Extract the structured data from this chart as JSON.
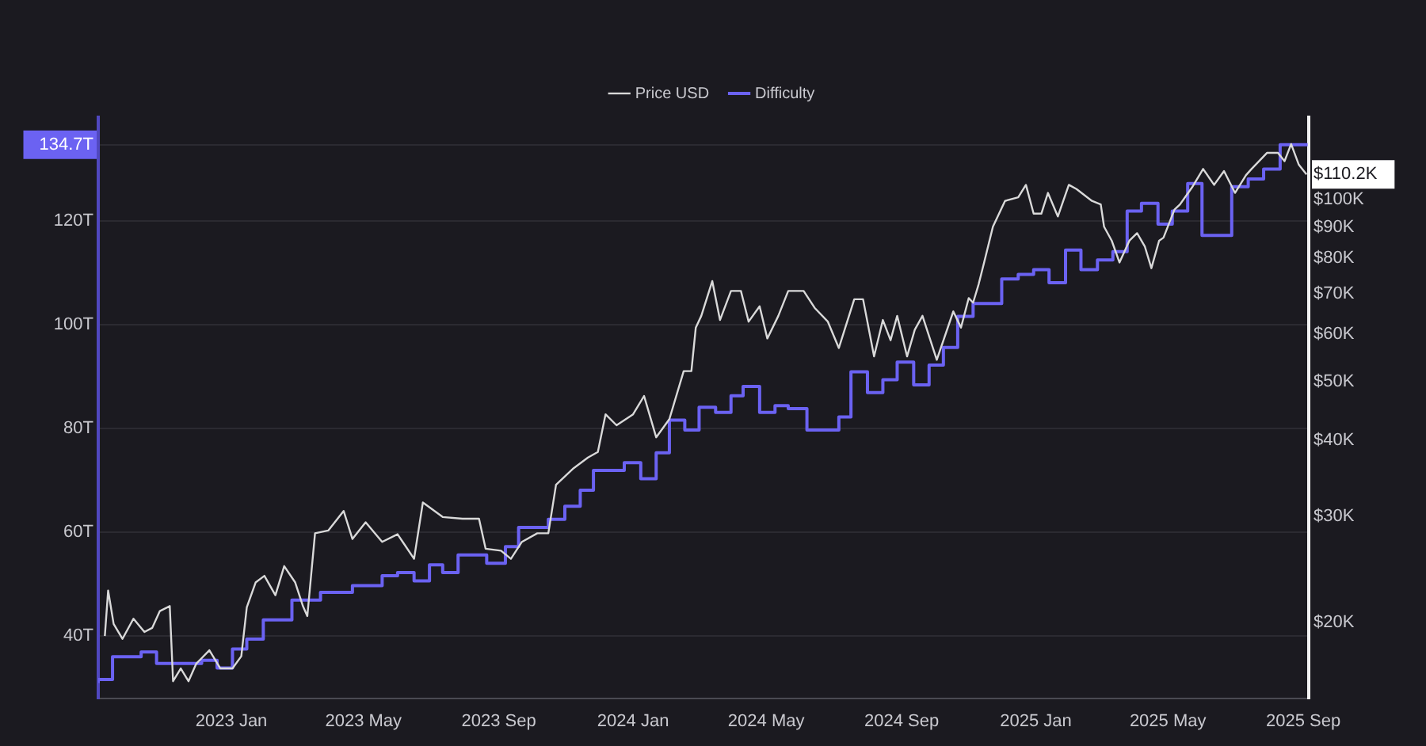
{
  "chart_data": {
    "type": "line",
    "legend": "top",
    "grid": "y",
    "log": "y2",
    "xlim": [
      "2022-09-02",
      "2025-09-06"
    ],
    "xticks": [
      {
        "value": "2023-01-01",
        "label": "2023 Jan"
      },
      {
        "value": "2023-05-01",
        "label": "2023 May"
      },
      {
        "value": "2023-09-01",
        "label": "2023 Sep"
      },
      {
        "value": "2024-01-01",
        "label": "2024 Jan"
      },
      {
        "value": "2024-05-01",
        "label": "2024 May"
      },
      {
        "value": "2024-09-01",
        "label": "2024 Sep"
      },
      {
        "value": "2025-01-01",
        "label": "2025 Jan"
      },
      {
        "value": "2025-05-01",
        "label": "2025 May"
      },
      {
        "value": "2025-09-01",
        "label": "2025 Sep"
      }
    ],
    "ylim": [
      28,
      140
    ],
    "yticks": [
      {
        "value": 40,
        "label": "40T"
      },
      {
        "value": 60,
        "label": "60T"
      },
      {
        "value": 80,
        "label": "80T"
      },
      {
        "value": 100,
        "label": "100T"
      },
      {
        "value": 120,
        "label": "120T"
      },
      {
        "value": 134.7,
        "label": "134.7T"
      }
    ],
    "y2lim": [
      15,
      137
    ],
    "y2ticks": [
      {
        "value": 20,
        "label": "$20K"
      },
      {
        "value": 30,
        "label": "$30K"
      },
      {
        "value": 40,
        "label": "$40K"
      },
      {
        "value": 50,
        "label": "$50K"
      },
      {
        "value": 60,
        "label": "$60K"
      },
      {
        "value": 70,
        "label": "$70K"
      },
      {
        "value": 80,
        "label": "$80K"
      },
      {
        "value": 90,
        "label": "$90K"
      },
      {
        "value": 100,
        "label": "$100K"
      },
      {
        "value": 110.2,
        "label": "$110.2K"
      }
    ],
    "series": [
      {
        "name": "Price USD",
        "type": "line",
        "axis": "y2",
        "color": "#d9d9d9",
        "x": [
          "2022-09-08",
          "2022-09-11",
          "2022-09-16",
          "2022-09-24",
          "2022-10-04",
          "2022-10-14",
          "2022-10-21",
          "2022-10-28",
          "2022-11-06",
          "2022-11-09",
          "2022-11-16",
          "2022-11-23",
          "2022-11-30",
          "2022-12-12",
          "2022-12-22",
          "2023-01-02",
          "2023-01-10",
          "2023-01-15",
          "2023-01-23",
          "2023-01-31",
          "2023-02-10",
          "2023-02-18",
          "2023-02-28",
          "2023-03-07",
          "2023-03-11",
          "2023-03-18",
          "2023-03-30",
          "2023-04-13",
          "2023-04-21",
          "2023-05-03",
          "2023-05-18",
          "2023-06-01",
          "2023-06-16",
          "2023-06-24",
          "2023-07-12",
          "2023-07-30",
          "2023-08-14",
          "2023-08-20",
          "2023-09-03",
          "2023-09-12",
          "2023-09-22",
          "2023-10-06",
          "2023-10-16",
          "2023-10-23",
          "2023-11-08",
          "2023-11-21",
          "2023-11-30",
          "2023-12-07",
          "2023-12-17",
          "2024-01-01",
          "2024-01-11",
          "2024-01-22",
          "2024-02-03",
          "2024-02-16",
          "2024-02-23",
          "2024-02-27",
          "2024-03-03",
          "2024-03-13",
          "2024-03-20",
          "2024-03-30",
          "2024-04-08",
          "2024-04-15",
          "2024-04-25",
          "2024-05-02",
          "2024-05-12",
          "2024-05-21",
          "2024-06-04",
          "2024-06-14",
          "2024-06-26",
          "2024-07-06",
          "2024-07-20",
          "2024-07-28",
          "2024-08-07",
          "2024-08-15",
          "2024-08-22",
          "2024-08-28",
          "2024-09-06",
          "2024-09-13",
          "2024-09-20",
          "2024-10-03",
          "2024-10-18",
          "2024-10-25",
          "2024-11-01",
          "2024-11-05",
          "2024-11-10",
          "2024-11-15",
          "2024-11-23",
          "2024-12-04",
          "2024-12-16",
          "2024-12-23",
          "2024-12-30",
          "2025-01-06",
          "2025-01-12",
          "2025-01-21",
          "2025-01-31",
          "2025-02-07",
          "2025-02-21",
          "2025-03-01",
          "2025-03-04",
          "2025-03-11",
          "2025-03-18",
          "2025-03-27",
          "2025-04-03",
          "2025-04-10",
          "2025-04-16",
          "2025-04-23",
          "2025-04-27",
          "2025-05-07",
          "2025-05-12",
          "2025-05-23",
          "2025-06-02",
          "2025-06-12",
          "2025-06-21",
          "2025-07-01",
          "2025-07-11",
          "2025-07-16",
          "2025-07-30",
          "2025-08-09",
          "2025-08-15",
          "2025-08-21",
          "2025-08-28",
          "2025-09-04"
        ],
        "values": [
          19.0,
          22.6,
          19.9,
          18.8,
          20.3,
          19.3,
          19.6,
          20.9,
          21.3,
          16.0,
          16.8,
          16.0,
          17.1,
          18.0,
          16.8,
          16.8,
          17.6,
          21.2,
          23.3,
          23.9,
          22.2,
          24.8,
          23.3,
          21.3,
          20.5,
          28.1,
          28.4,
          30.6,
          27.5,
          29.3,
          27.2,
          28.0,
          25.5,
          31.6,
          29.9,
          29.7,
          29.7,
          26.5,
          26.3,
          25.5,
          27.2,
          28.1,
          28.1,
          33.8,
          36.0,
          37.5,
          38.3,
          44.2,
          42.4,
          44.2,
          47.4,
          40.5,
          43.4,
          52.1,
          52.1,
          61.5,
          64.3,
          73.4,
          63.3,
          70.7,
          70.7,
          62.9,
          66.7,
          59.0,
          64.3,
          70.7,
          70.7,
          66.3,
          62.9,
          56.9,
          68.5,
          68.5,
          55.1,
          63.3,
          58.6,
          64.3,
          55.1,
          61.0,
          64.3,
          54.4,
          65.4,
          61.5,
          68.8,
          67.6,
          72.5,
          78.8,
          90.3,
          99.6,
          101.0,
          105.9,
          94.9,
          94.9,
          102.7,
          93.9,
          105.9,
          104.2,
          99.6,
          98.3,
          90.3,
          85.6,
          78.8,
          85.6,
          88.1,
          83.8,
          77.1,
          85.6,
          86.6,
          96.4,
          98.3,
          104.9,
          112.5,
          105.9,
          111.6,
          102.7,
          109.9,
          112.5,
          119.6,
          119.6,
          115.9,
          123.7,
          114.3,
          110.2
        ]
      },
      {
        "name": "Difficulty",
        "type": "step",
        "axis": "y",
        "color": "#6b62f2",
        "x": [
          "2022-09-02",
          "2022-09-15",
          "2022-10-11",
          "2022-10-25",
          "2022-12-05",
          "2022-12-19",
          "2023-01-02",
          "2023-01-15",
          "2023-01-30",
          "2023-02-25",
          "2023-03-23",
          "2023-04-21",
          "2023-05-18",
          "2023-06-01",
          "2023-06-16",
          "2023-06-30",
          "2023-07-12",
          "2023-07-26",
          "2023-08-21",
          "2023-09-07",
          "2023-09-19",
          "2023-10-16",
          "2023-10-31",
          "2023-11-14",
          "2023-11-26",
          "2023-12-24",
          "2024-01-08",
          "2024-01-22",
          "2024-02-03",
          "2024-02-17",
          "2024-03-01",
          "2024-03-16",
          "2024-03-30",
          "2024-04-10",
          "2024-04-25",
          "2024-05-09",
          "2024-05-21",
          "2024-06-07",
          "2024-07-06",
          "2024-07-17",
          "2024-08-01",
          "2024-08-15",
          "2024-08-28",
          "2024-09-12",
          "2024-09-26",
          "2024-10-09",
          "2024-10-22",
          "2024-11-05",
          "2024-12-01",
          "2024-12-16",
          "2024-12-30",
          "2025-01-13",
          "2025-01-28",
          "2025-02-11",
          "2025-02-26",
          "2025-03-12",
          "2025-03-25",
          "2025-04-07",
          "2025-04-22",
          "2025-05-05",
          "2025-05-19",
          "2025-06-01",
          "2025-06-28",
          "2025-07-13",
          "2025-07-27",
          "2025-08-11",
          "2025-09-05"
        ],
        "values": [
          30.9,
          31.6,
          36.0,
          36.9,
          34.7,
          35.3,
          33.8,
          37.5,
          39.4,
          43.1,
          46.9,
          48.4,
          49.7,
          51.6,
          52.2,
          50.6,
          53.7,
          52.2,
          55.6,
          54.0,
          57.2,
          60.9,
          62.5,
          65.0,
          68.1,
          71.9,
          73.4,
          70.3,
          75.3,
          81.6,
          79.7,
          84.1,
          83.1,
          86.3,
          88.1,
          83.1,
          84.4,
          83.8,
          79.7,
          82.2,
          90.9,
          86.9,
          89.4,
          92.8,
          88.4,
          92.2,
          95.6,
          101.6,
          104.1,
          108.8,
          109.7,
          110.6,
          108.1,
          114.4,
          110.6,
          112.5,
          114.1,
          121.9,
          123.4,
          119.4,
          121.9,
          127.2,
          117.2,
          126.6,
          128.1,
          130.0,
          134.7
        ]
      }
    ]
  }
}
